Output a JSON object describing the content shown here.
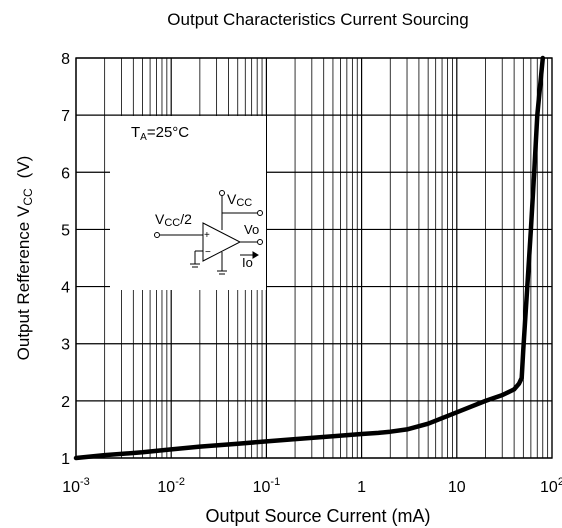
{
  "chart_data": {
    "type": "line",
    "title": "Output Characteristics Current Sourcing",
    "xlabel": "Output Source Current  (mA)",
    "ylabel": "Output Refference V",
    "ylabel_sub": "CC",
    "ylabel_unit": "(V)",
    "x_scale": "log",
    "xlim": [
      0.001,
      100
    ],
    "ylim": [
      1,
      8
    ],
    "grid": true,
    "x_ticks": [
      {
        "value": 0.001,
        "base": "10",
        "exp": "-3"
      },
      {
        "value": 0.01,
        "base": "10",
        "exp": "-2"
      },
      {
        "value": 0.1,
        "base": "10",
        "exp": "-1"
      },
      {
        "value": 1,
        "base": "1",
        "exp": ""
      },
      {
        "value": 10,
        "base": "10",
        "exp": ""
      },
      {
        "value": 100,
        "base": "10",
        "exp": "2"
      }
    ],
    "y_ticks": [
      1,
      2,
      3,
      4,
      5,
      6,
      7,
      8
    ],
    "series": [
      {
        "x": [
          0.001,
          0.002,
          0.005,
          0.01,
          0.02,
          0.05,
          0.1,
          0.2,
          0.5,
          1,
          1.5,
          2,
          3,
          5,
          10,
          20,
          30,
          40,
          45,
          48,
          50,
          55,
          60,
          65,
          70,
          80
        ],
        "y": [
          1.0,
          1.05,
          1.1,
          1.15,
          1.2,
          1.25,
          1.29,
          1.33,
          1.38,
          1.42,
          1.44,
          1.46,
          1.5,
          1.6,
          1.8,
          2.0,
          2.1,
          2.2,
          2.3,
          2.4,
          2.9,
          4.0,
          5.0,
          6.0,
          7.0,
          8.0
        ],
        "color": "#000000"
      }
    ],
    "annotation": {
      "ta_label": "T",
      "ta_sub": "A",
      "ta_value": "=25°C"
    },
    "circuit": {
      "vcc_label": "V",
      "vcc_sub": "CC",
      "vcc2_label": "V",
      "vcc2_sub": "CC",
      "vcc2_suffix": "/2",
      "plus": "+",
      "minus": "−",
      "vo_label": "Vo",
      "io_label": "Io"
    }
  }
}
